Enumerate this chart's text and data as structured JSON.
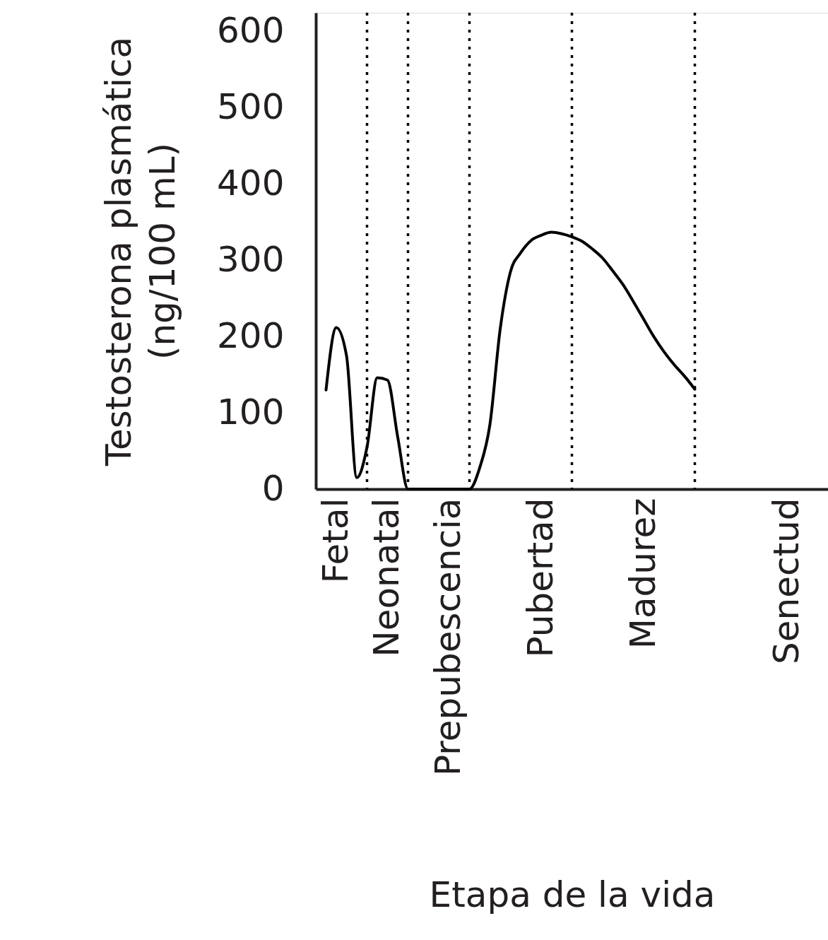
{
  "chart_data": {
    "type": "line",
    "xlabel": "Etapa de la vida",
    "ylabel": "Testosterona plasmática\n(ng/100 mL)",
    "ylim": [
      0,
      625
    ],
    "yticks": [
      0,
      100,
      200,
      300,
      400,
      500,
      600
    ],
    "categories": [
      null,
      null,
      "Fetal",
      null,
      null,
      null,
      null,
      "Neonatal",
      null,
      null,
      null,
      null,
      null,
      "Prepubescencia",
      null,
      null,
      null,
      null,
      null,
      null,
      null,
      null,
      "Pubertad",
      null,
      null,
      null,
      null,
      null,
      null,
      null,
      null,
      null,
      "Madurez",
      null,
      null,
      null,
      null,
      null,
      null,
      null,
      null,
      null,
      null,
      null,
      null,
      null,
      "Senectud",
      null,
      null,
      null,
      null
    ],
    "grid": false,
    "marker": "none",
    "line_style": "solid",
    "series": [
      {
        "color": "#000000",
        "values": [
          null,
          130,
          212,
          175,
          15,
          55,
          146,
          143,
          68,
          0,
          0,
          0,
          0,
          0,
          0,
          0,
          28,
          85,
          210,
          285,
          310,
          326,
          333,
          337,
          335,
          331,
          325,
          315,
          303,
          286,
          268,
          246,
          223,
          200,
          180,
          163,
          148,
          131,
          null,
          null,
          null,
          null,
          null,
          null,
          null,
          null,
          null,
          null,
          null,
          null,
          null
        ]
      }
    ]
  }
}
